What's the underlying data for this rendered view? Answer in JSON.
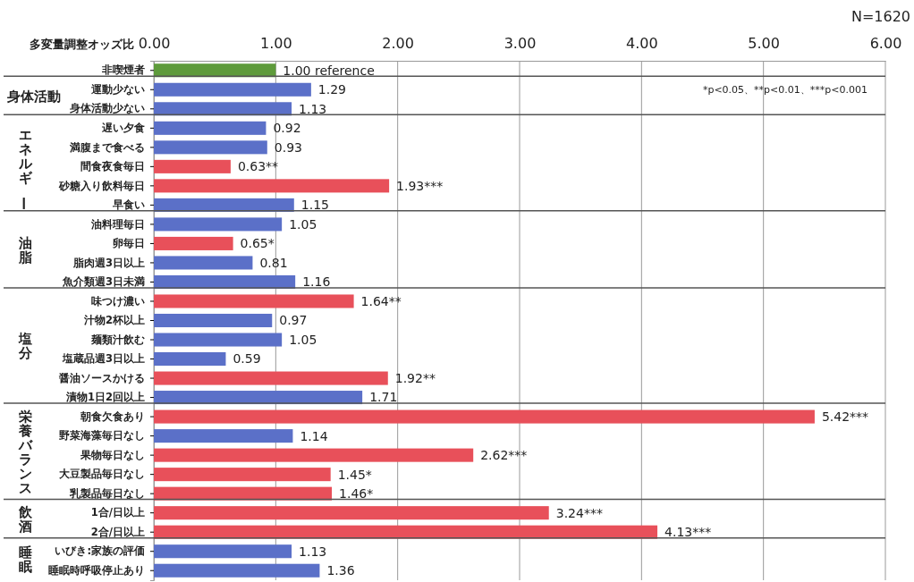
{
  "chart_data": {
    "type": "bar",
    "orientation": "horizontal",
    "xlabel": "多変量調整オッズ比",
    "categories": [
      "非喫煙者",
      "運動少ない",
      "身体活動少ない",
      "遅い夕食",
      "満腹まで食べる",
      "間食夜食毎日",
      "砂糖入り飲料毎日",
      "早食い",
      "油料理毎日",
      "卵毎日",
      "脂肉週3日以上",
      "魚介類週3日未満",
      "味つけ濃い",
      "汁物2杯以上",
      "麺類汁飲む",
      "塩蔵品週3日以上",
      "醤油ソースかける",
      "漬物1日2回以上",
      "朝食欠食あり",
      "野菜海藻毎日なし",
      "果物毎日なし",
      "大豆製品毎日なし",
      "乳製品毎日なし",
      "1合/日以上",
      "2合/日以上",
      "いびき:家族の評価",
      "睡眠時呼吸停止あり"
    ],
    "values": [
      1.0,
      1.29,
      1.13,
      0.92,
      0.93,
      0.63,
      1.93,
      1.15,
      1.05,
      0.65,
      0.81,
      1.16,
      1.64,
      0.97,
      1.05,
      0.59,
      1.92,
      1.71,
      5.42,
      1.14,
      2.62,
      1.45,
      1.46,
      3.24,
      4.13,
      1.13,
      1.36
    ],
    "value_labels": [
      "1.00 reference",
      "1.29",
      "1.13",
      "0.92",
      "0.93",
      "0.63**",
      "1.93***",
      "1.15",
      "1.05",
      "0.65*",
      "0.81",
      "1.16",
      "1.64**",
      "0.97",
      "1.05",
      "0.59",
      "1.92**",
      "1.71",
      "5.42***",
      "1.14",
      "2.62***",
      "1.45*",
      "1.46*",
      "3.24***",
      "4.13***",
      "1.13",
      "1.36"
    ],
    "colors": [
      "#5e9b3b",
      "#5b70c8",
      "#5b70c8",
      "#5b70c8",
      "#5b70c8",
      "#e8505a",
      "#e8505a",
      "#5b70c8",
      "#5b70c8",
      "#e8505a",
      "#5b70c8",
      "#5b70c8",
      "#e8505a",
      "#5b70c8",
      "#5b70c8",
      "#5b70c8",
      "#e8505a",
      "#5b70c8",
      "#e8505a",
      "#5b70c8",
      "#e8505a",
      "#e8505a",
      "#e8505a",
      "#e8505a",
      "#e8505a",
      "#5b70c8",
      "#5b70c8"
    ],
    "xlim": [
      0,
      6
    ],
    "xticks": [
      {
        "value": 0,
        "label": "0.00"
      },
      {
        "value": 1,
        "label": "1.00"
      },
      {
        "value": 2,
        "label": "2.00"
      },
      {
        "value": 3,
        "label": "3.00"
      },
      {
        "value": 4,
        "label": "4.00"
      },
      {
        "value": 5,
        "label": "5.00"
      },
      {
        "value": 6,
        "label": "6.00"
      }
    ],
    "grid": "x",
    "annotations": [
      "N=1620",
      "*p<0.05、**p<0.01、***p<0.001",
      "身体活動",
      "エネルギー",
      "油脂",
      "塩分",
      "栄養バランス",
      "飲酒",
      "睡眠"
    ]
  }
}
